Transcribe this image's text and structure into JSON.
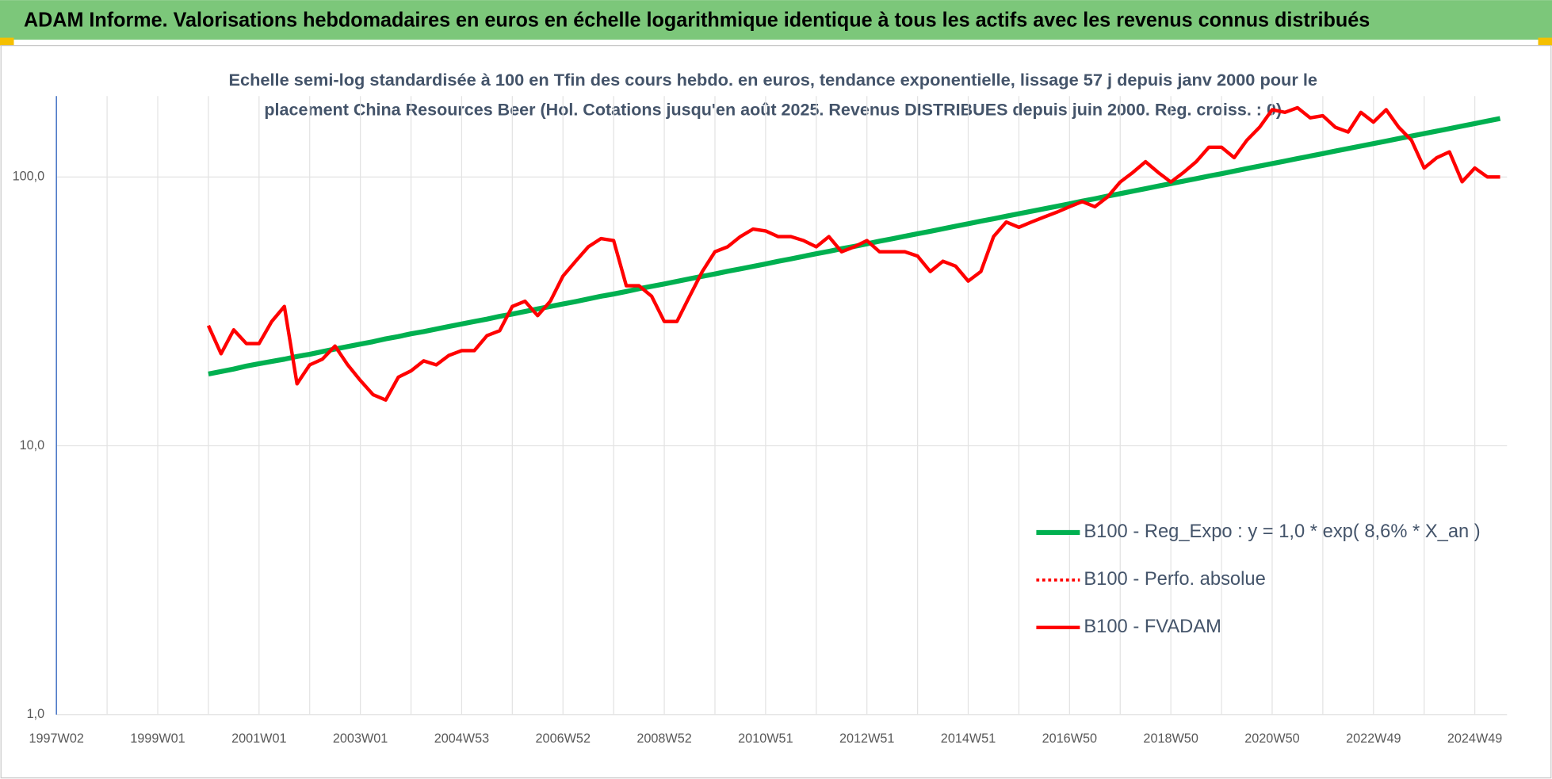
{
  "chart_data": {
    "type": "line",
    "title": "ADAM Informe. Valorisations hebdomadaires en euros en échelle logarithmique identique à tous les actifs avec les revenus connus distribués",
    "subtitle": [
      "Echelle semi-log standardisée à 100 en Tfin des cours hebdo. en euros, tendance exponentielle, lissage 57 j depuis janv 2000 pour le",
      "placement China Resources Beer (Hol. Cotations jusqu'en août 2025. Revenus DISTRIBUES depuis juin 2000. Reg. croiss. : 0)"
    ],
    "log_scale": true,
    "grid": true,
    "legend": "right",
    "ylim": [
      1,
      200
    ],
    "yticks": [
      {
        "value": 1,
        "label": "1,0"
      },
      {
        "value": 10,
        "label": "10,0"
      },
      {
        "value": 100,
        "label": "100,0"
      }
    ],
    "categories": [
      "1997W02",
      null,
      null,
      null,
      null,
      null,
      null,
      null,
      "1999W01",
      null,
      null,
      null,
      null,
      null,
      null,
      null,
      "2001W01",
      null,
      null,
      null,
      null,
      null,
      null,
      null,
      "2003W01",
      null,
      null,
      null,
      null,
      null,
      null,
      null,
      "2004W53",
      null,
      null,
      null,
      null,
      null,
      null,
      null,
      "2006W52",
      null,
      null,
      null,
      null,
      null,
      null,
      null,
      "2008W52",
      null,
      null,
      null,
      null,
      null,
      null,
      null,
      "2010W51",
      null,
      null,
      null,
      null,
      null,
      null,
      null,
      "2012W51",
      null,
      null,
      null,
      null,
      null,
      null,
      null,
      "2014W51",
      null,
      null,
      null,
      null,
      null,
      null,
      null,
      "2016W50",
      null,
      null,
      null,
      null,
      null,
      null,
      null,
      "2018W50",
      null,
      null,
      null,
      null,
      null,
      null,
      null,
      "2020W50",
      null,
      null,
      null,
      null,
      null,
      null,
      null,
      "2022W49",
      null,
      null,
      null,
      null,
      null,
      null,
      null,
      "2024W49",
      null,
      null
    ],
    "series": [
      {
        "name": "B100 - Reg_Expo : y = 1,0 * exp( 8,6% *  X_an )",
        "color": "#00b050",
        "style": "solid",
        "values": [
          null,
          null,
          null,
          null,
          null,
          null,
          null,
          null,
          null,
          null,
          null,
          null,
          18.5,
          18.9,
          19.3,
          19.8,
          20.2,
          20.6,
          21.0,
          21.5,
          21.9,
          22.4,
          22.9,
          23.4,
          23.9,
          24.4,
          25.0,
          25.5,
          26.1,
          26.6,
          27.2,
          27.8,
          28.4,
          29.0,
          29.6,
          30.3,
          30.9,
          31.6,
          32.3,
          33.0,
          33.7,
          34.4,
          35.2,
          36.0,
          36.7,
          37.5,
          38.4,
          39.2,
          40.0,
          40.9,
          41.8,
          42.7,
          43.6,
          44.6,
          45.5,
          46.5,
          47.5,
          48.6,
          49.6,
          50.7,
          51.8,
          52.9,
          54.1,
          55.2,
          56.4,
          57.7,
          58.9,
          60.2,
          61.5,
          62.8,
          64.2,
          65.6,
          67.0,
          68.5,
          69.9,
          71.5,
          73.0,
          74.6,
          76.2,
          77.8,
          79.5,
          81.3,
          83.0,
          84.9,
          86.7,
          88.6,
          90.5,
          92.5,
          94.5,
          96.5,
          98.6,
          100.8,
          102.9,
          105.2,
          107.5,
          109.8,
          112.2,
          114.6,
          117.1,
          119.6,
          122.2,
          124.9,
          127.6,
          130.3,
          133.1,
          136.0,
          139.0,
          142.0,
          145.1,
          148.2,
          151.4,
          154.7,
          158.1,
          161.5,
          165.0
        ]
      },
      {
        "name": "B100 - Perfo. absolue",
        "color": "#ff0000",
        "style": "dotted",
        "values": [
          null,
          null,
          null,
          null,
          null,
          null,
          null,
          null,
          null,
          null,
          null,
          null,
          null,
          null,
          null,
          null,
          null,
          null,
          null,
          null,
          null,
          null,
          null,
          null,
          null,
          null,
          null,
          null,
          null,
          null,
          null,
          null,
          null,
          null,
          null,
          null,
          null,
          null,
          null,
          null,
          null,
          null,
          null,
          null,
          null,
          null,
          null,
          null,
          null,
          null,
          null,
          null,
          null,
          null,
          null,
          null,
          null,
          null,
          null,
          null,
          null,
          null,
          null,
          null,
          null,
          null,
          null,
          null,
          null,
          null,
          null,
          null,
          null,
          null,
          null,
          null,
          null,
          null,
          null,
          null,
          null,
          null,
          null,
          null,
          null,
          null,
          null,
          null,
          null,
          null,
          null,
          null,
          null,
          null,
          null,
          null,
          null,
          null,
          null,
          null,
          null,
          null,
          null,
          null,
          null,
          null,
          null,
          null,
          null,
          null,
          null,
          null,
          null,
          null,
          null
        ]
      },
      {
        "name": "B100 - FVADAM",
        "color": "#ff0000",
        "style": "solid",
        "values": [
          null,
          null,
          null,
          null,
          null,
          null,
          null,
          null,
          null,
          null,
          null,
          null,
          28,
          22,
          27,
          24,
          24,
          29,
          33,
          17,
          20,
          21,
          23.5,
          20,
          17.5,
          15.5,
          14.8,
          18,
          19,
          20.7,
          20,
          21.7,
          22.6,
          22.6,
          25.7,
          26.8,
          33,
          34.5,
          30.5,
          34.5,
          42.8,
          48.6,
          55,
          59,
          58,
          39.4,
          39.4,
          36,
          29,
          29,
          36,
          44.5,
          52.7,
          55,
          60,
          64,
          63,
          60,
          60,
          58,
          55,
          60,
          52.7,
          55,
          58,
          52.7,
          52.7,
          52.7,
          50.8,
          44.5,
          48.6,
          46.6,
          41,
          44.5,
          60,
          68,
          65,
          68,
          71,
          74,
          77.5,
          81,
          77.5,
          84.3,
          95.8,
          104,
          114,
          104,
          95.8,
          104,
          114,
          129,
          129,
          118,
          137,
          153,
          178,
          174,
          181,
          166,
          169,
          153,
          147,
          174,
          160,
          178,
          153,
          137,
          108,
          118,
          124,
          96,
          108,
          100,
          100
        ]
      }
    ]
  }
}
